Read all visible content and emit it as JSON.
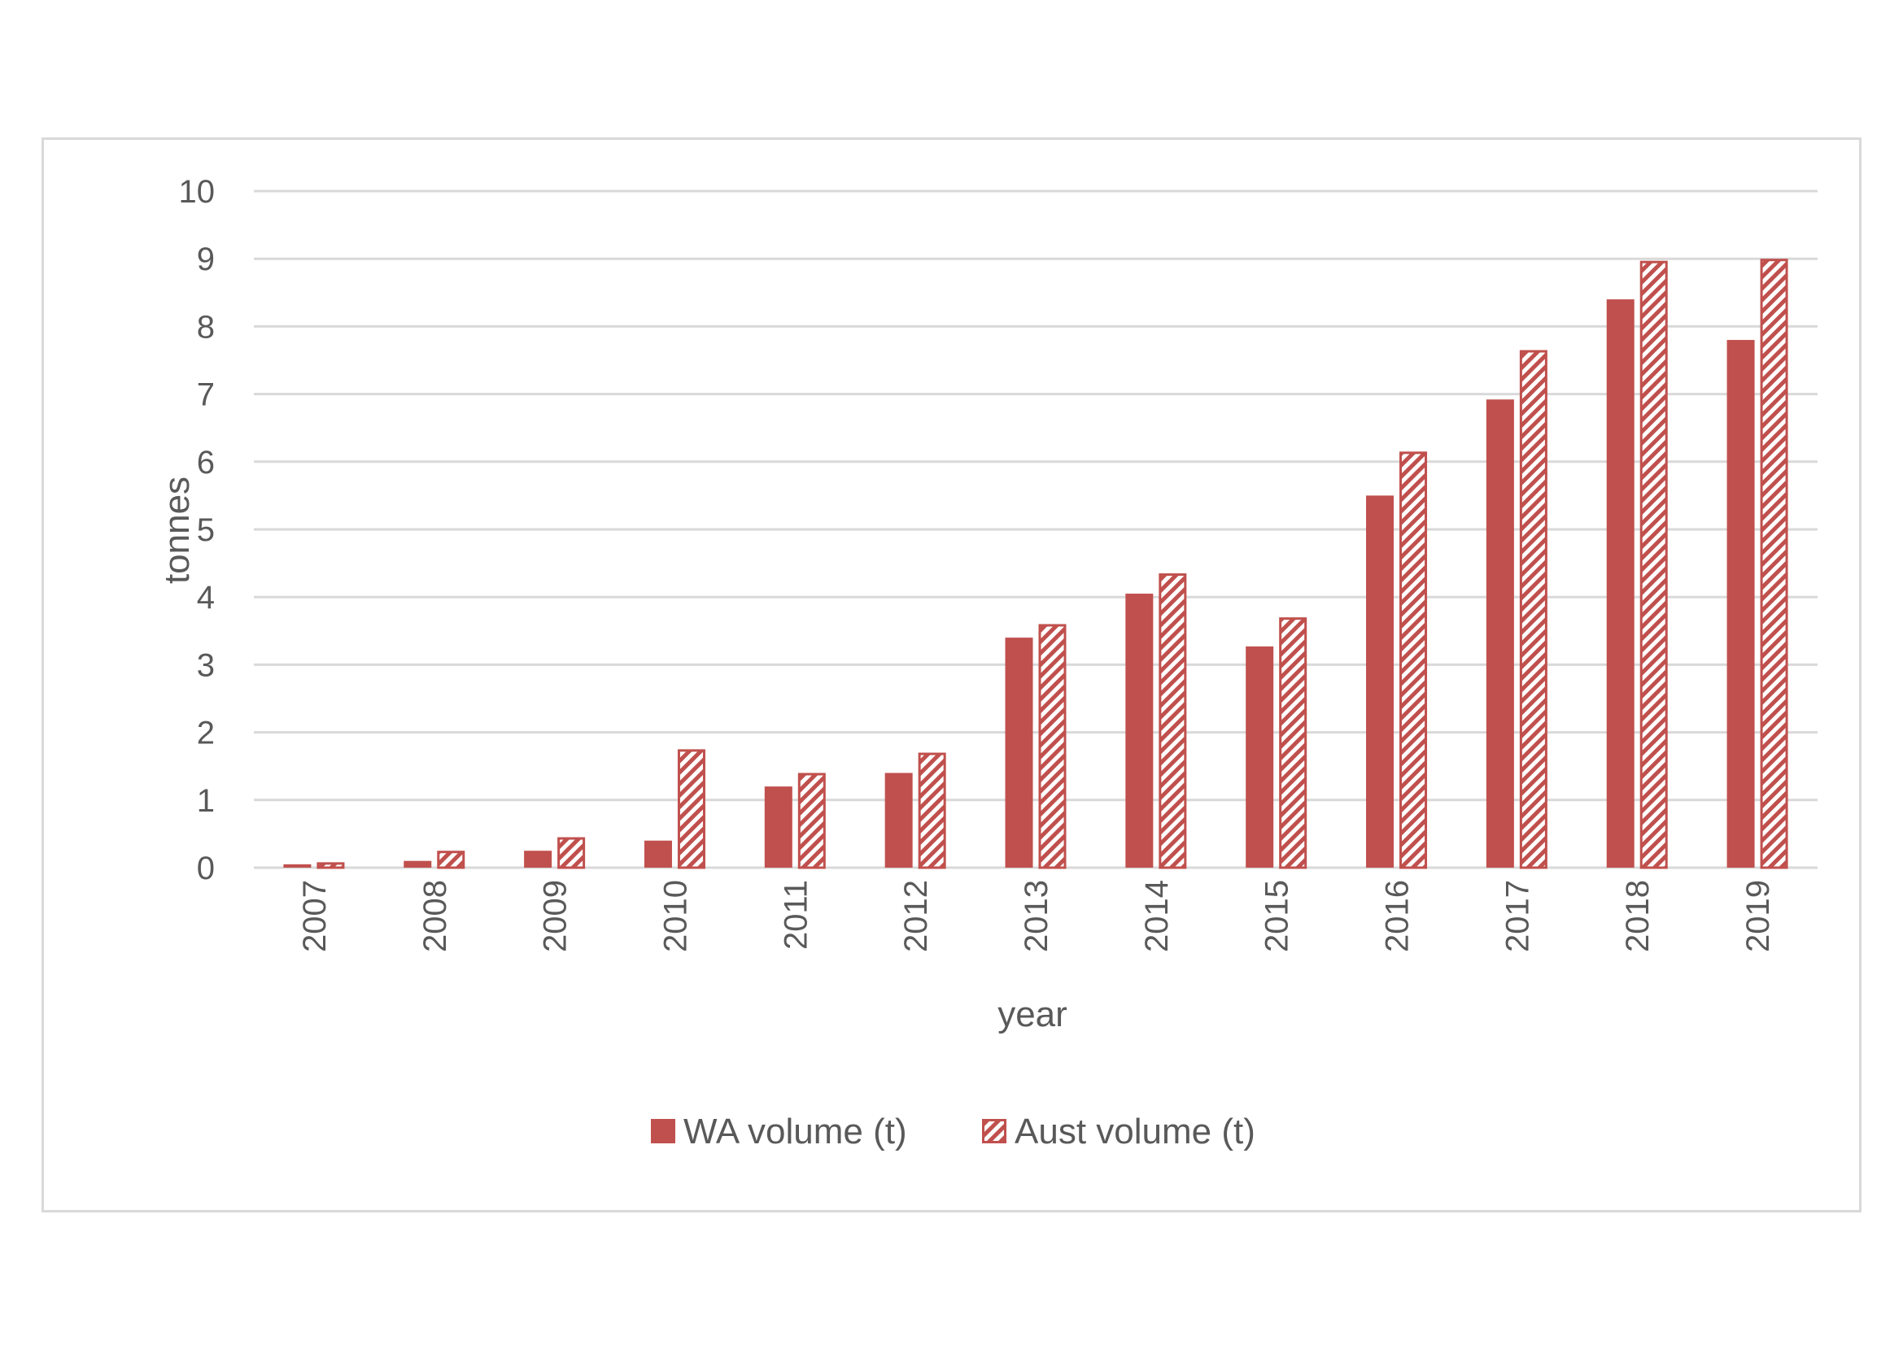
{
  "chart_data": {
    "type": "bar",
    "title": "",
    "xlabel": "year",
    "ylabel": "tonnes",
    "ylim": [
      0,
      10
    ],
    "yticks": [
      "0",
      "1",
      "2",
      "3",
      "4",
      "5",
      "6",
      "7",
      "8",
      "9",
      "10"
    ],
    "grid": true,
    "legend_position": "bottom",
    "categories": [
      "2007",
      "2008",
      "2009",
      "2010",
      "2011",
      "2012",
      "2013",
      "2014",
      "2015",
      "2016",
      "2017",
      "2018",
      "2019"
    ],
    "series": [
      {
        "name": "WA volume (t)",
        "style": "solid",
        "color": "#c0504d",
        "values": [
          0.05,
          0.1,
          0.25,
          0.4,
          1.2,
          1.4,
          3.4,
          4.05,
          3.27,
          5.5,
          6.92,
          8.4,
          7.8
        ]
      },
      {
        "name": "Aust volume (t)",
        "style": "hatched",
        "color": "#c0504d",
        "values": [
          0.08,
          0.25,
          0.45,
          1.75,
          1.4,
          1.7,
          3.6,
          4.35,
          3.7,
          6.15,
          7.65,
          8.97,
          9.0
        ]
      }
    ],
    "colors": {
      "grid": "#d9d9d9",
      "axis": "#d9d9d9",
      "text": "#595959",
      "frame": "#d9d9d9"
    }
  }
}
